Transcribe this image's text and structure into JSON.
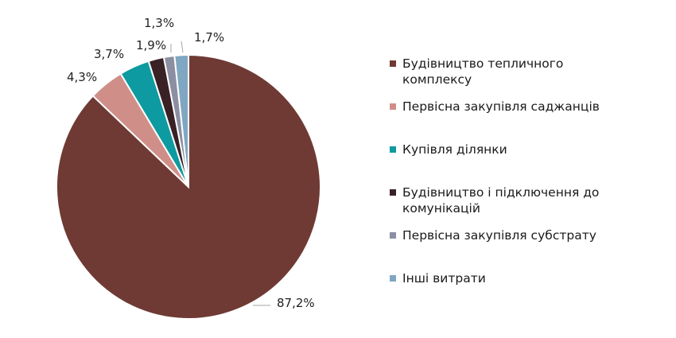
{
  "chart_data": {
    "type": "pie",
    "title": "",
    "slices": [
      {
        "label": "Будівництво тепличного комплексу",
        "value": 87.2,
        "display": "87,2%",
        "color": "#6f3a34"
      },
      {
        "label": "Первісна закупівля саджанців",
        "value": 4.3,
        "display": "4,3%",
        "color": "#cf8f88"
      },
      {
        "label": "Купівля ділянки",
        "value": 3.7,
        "display": "3,7%",
        "color": "#0d9aa0"
      },
      {
        "label": "Будівництво і підключення до комунікацій",
        "value": 1.9,
        "display": "1,9%",
        "color": "#3a2125"
      },
      {
        "label": "Первісна закупівля субстрату",
        "value": 1.3,
        "display": "1,3%",
        "color": "#8c8fa2"
      },
      {
        "label": "Інші витрати",
        "value": 1.7,
        "display": "1,7%",
        "color": "#7fa7c1"
      }
    ],
    "legend_position": "right",
    "start_angle": "12 o'clock",
    "direction": "clockwise"
  }
}
